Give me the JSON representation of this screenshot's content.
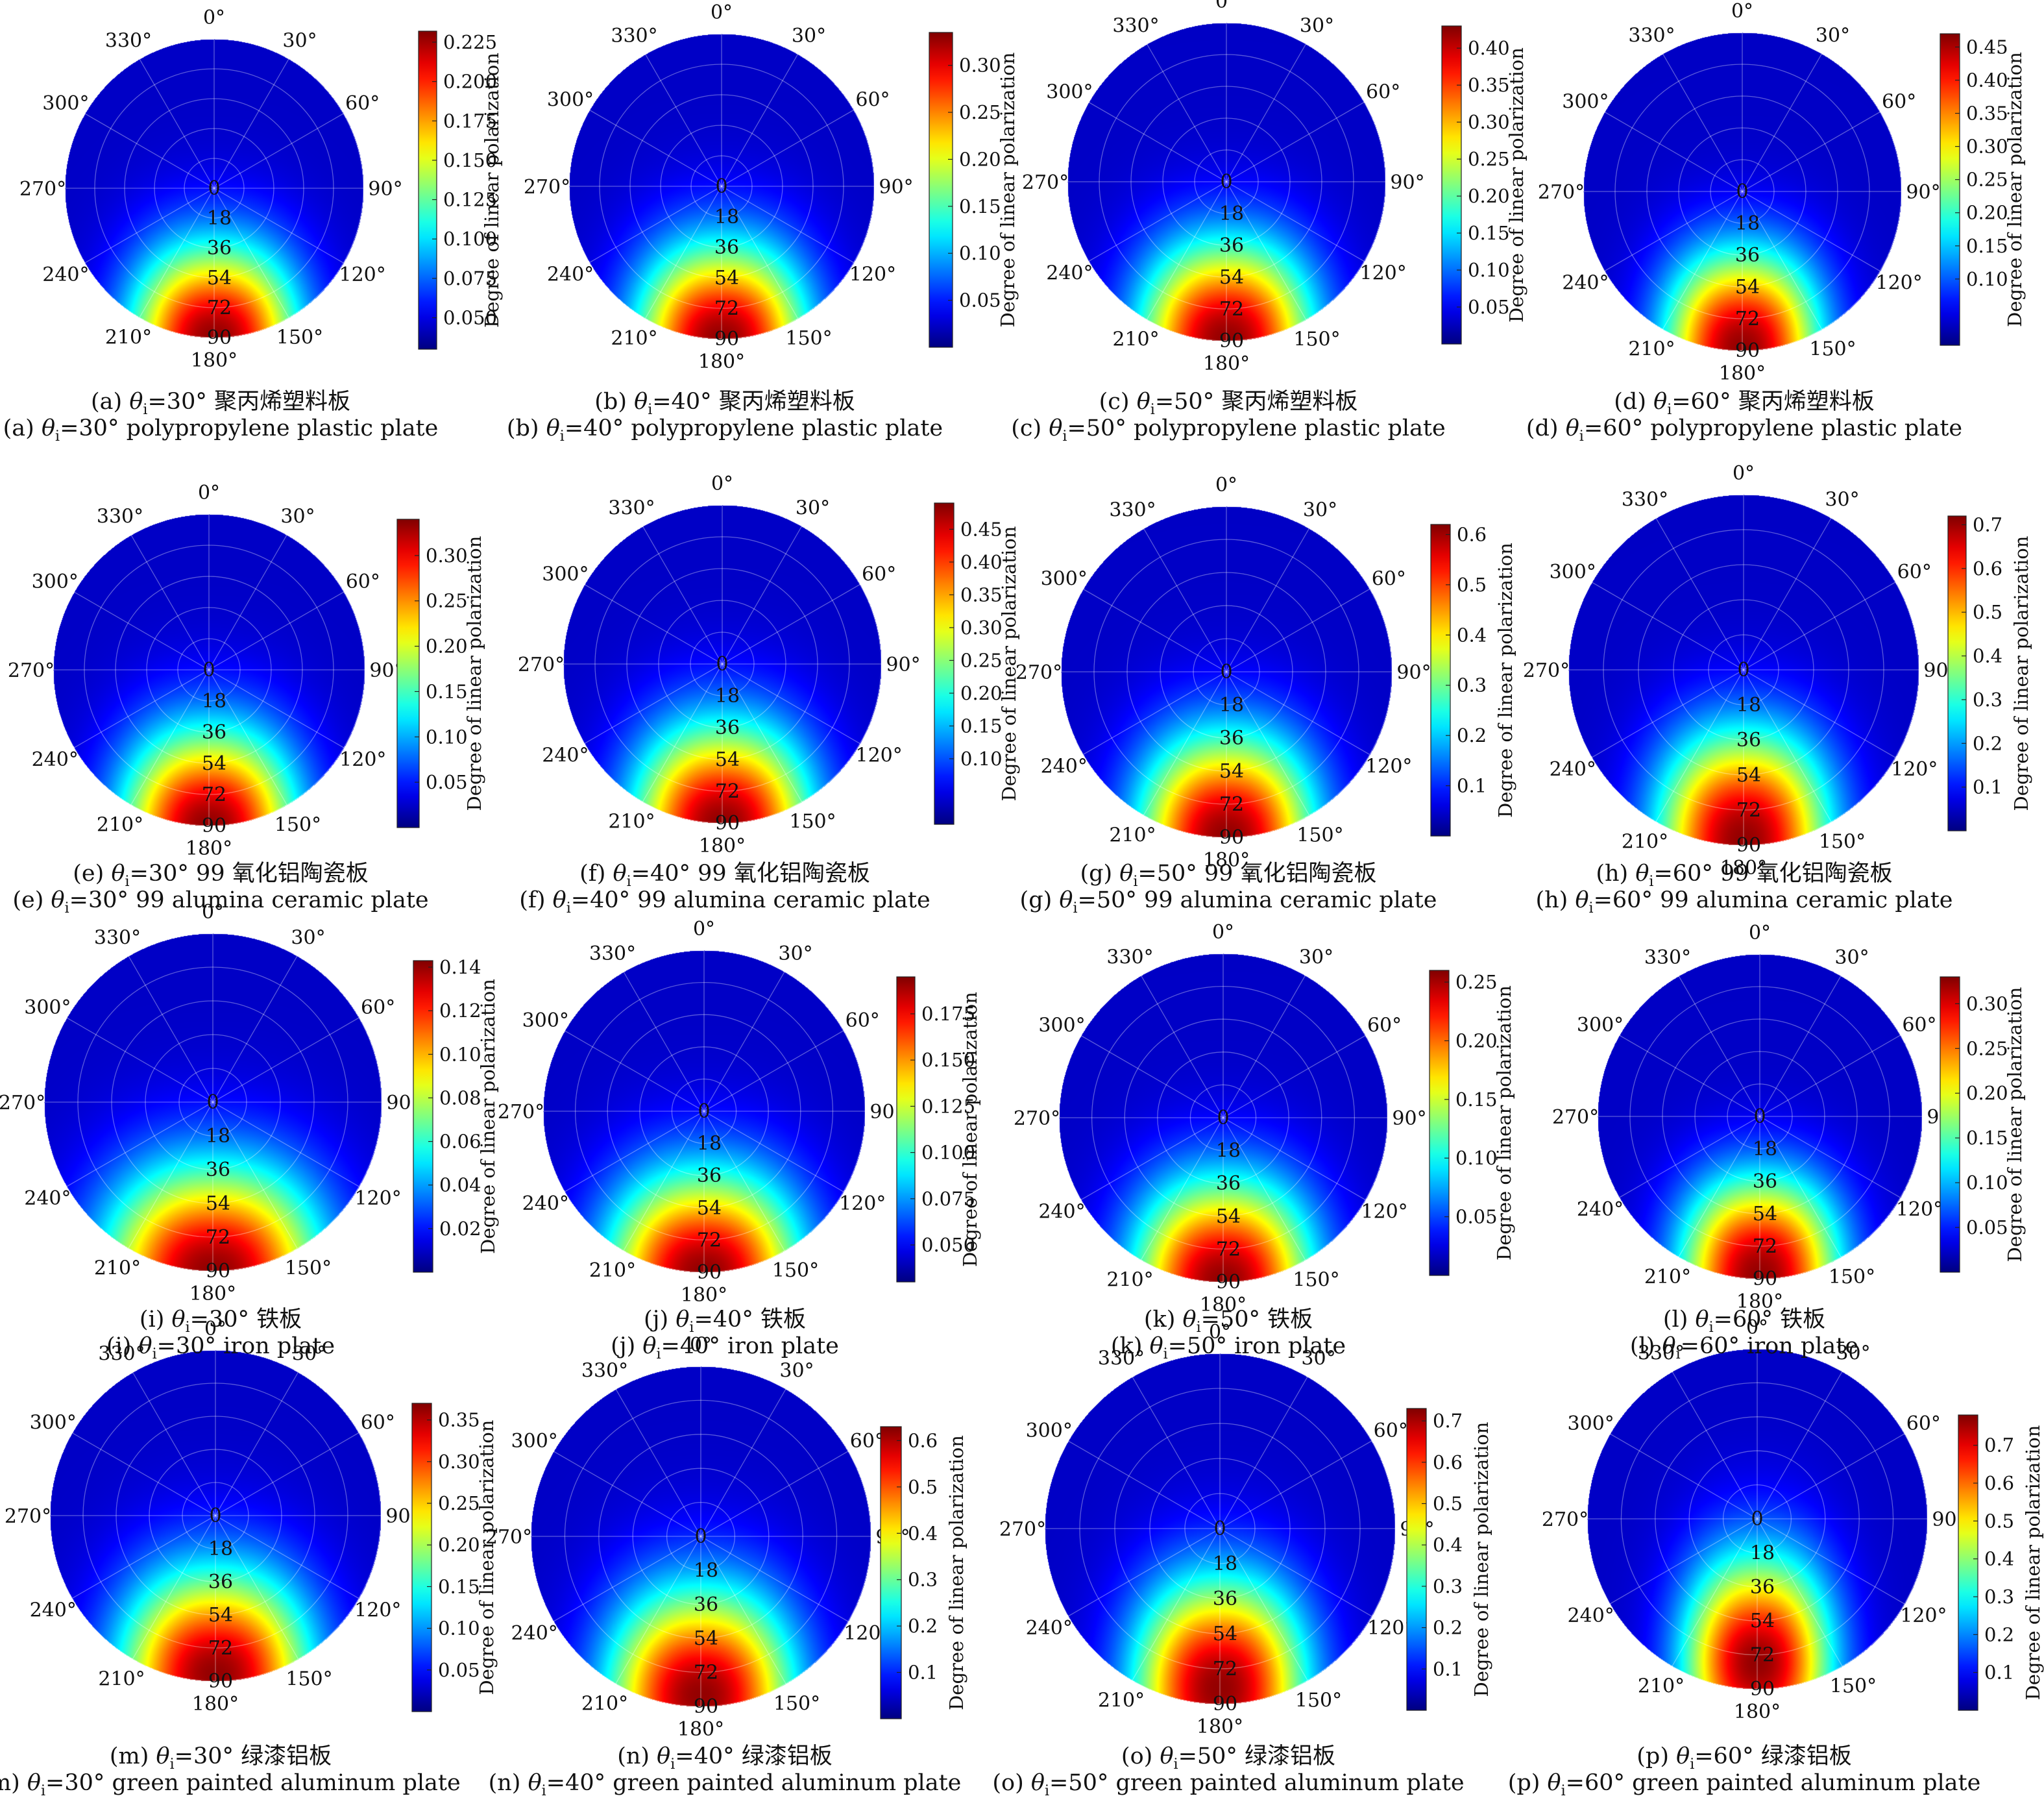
{
  "colorbar_label": "Degree of linear polarization",
  "azimuth_ticks": [
    "0°",
    "30°",
    "60°",
    "90°",
    "120°",
    "150°",
    "180°",
    "210°",
    "240°",
    "270°",
    "300°",
    "330°"
  ],
  "radial_ticks": [
    "0",
    "18",
    "36",
    "54",
    "72",
    "90"
  ],
  "chart_data": [
    {
      "panel": "a",
      "type": "heatmap",
      "projection": "polar",
      "theta_i": "30°",
      "material_cn": "聚丙烯塑料板",
      "material_en": "polypropylene plastic plate",
      "colorbar_ticks": [
        "0.050",
        "0.075",
        "0.100",
        "0.125",
        "0.150",
        "0.175",
        "0.200",
        "0.225"
      ],
      "zlim": [
        0.03,
        0.232
      ]
    },
    {
      "panel": "b",
      "type": "heatmap",
      "projection": "polar",
      "theta_i": "40°",
      "material_cn": "聚丙烯塑料板",
      "material_en": "polypropylene plastic plate",
      "colorbar_ticks": [
        "0.05",
        "0.10",
        "0.15",
        "0.20",
        "0.25",
        "0.30"
      ],
      "zlim": [
        0.0,
        0.335
      ]
    },
    {
      "panel": "c",
      "type": "heatmap",
      "projection": "polar",
      "theta_i": "50°",
      "material_cn": "聚丙烯塑料板",
      "material_en": "polypropylene plastic plate",
      "colorbar_ticks": [
        "0.05",
        "0.10",
        "0.15",
        "0.20",
        "0.25",
        "0.30",
        "0.35",
        "0.40"
      ],
      "zlim": [
        0.0,
        0.43
      ]
    },
    {
      "panel": "d",
      "type": "heatmap",
      "projection": "polar",
      "theta_i": "60°",
      "material_cn": "聚丙烯塑料板",
      "material_en": "polypropylene plastic plate",
      "colorbar_ticks": [
        "0.10",
        "0.15",
        "0.20",
        "0.25",
        "0.30",
        "0.35",
        "0.40",
        "0.45"
      ],
      "zlim": [
        0.0,
        0.47
      ]
    },
    {
      "panel": "e",
      "type": "heatmap",
      "projection": "polar",
      "theta_i": "30°",
      "material_cn": "99 氧化铝陶瓷板",
      "material_en": "99 alumina ceramic plate",
      "colorbar_ticks": [
        "0.05",
        "0.10",
        "0.15",
        "0.20",
        "0.25",
        "0.30"
      ],
      "zlim": [
        0.0,
        0.34
      ]
    },
    {
      "panel": "f",
      "type": "heatmap",
      "projection": "polar",
      "theta_i": "40°",
      "material_cn": "99 氧化铝陶瓷板",
      "material_en": "99 alumina ceramic plate",
      "colorbar_ticks": [
        "0.10",
        "0.15",
        "0.20",
        "0.25",
        "0.30",
        "0.35",
        "0.40",
        "0.45"
      ],
      "zlim": [
        0.0,
        0.49
      ]
    },
    {
      "panel": "g",
      "type": "heatmap",
      "projection": "polar",
      "theta_i": "50°",
      "material_cn": "99 氧化铝陶瓷板",
      "material_en": "99 alumina ceramic plate",
      "colorbar_ticks": [
        "0.1",
        "0.2",
        "0.3",
        "0.4",
        "0.5",
        "0.6"
      ],
      "zlim": [
        0.0,
        0.62
      ]
    },
    {
      "panel": "h",
      "type": "heatmap",
      "projection": "polar",
      "theta_i": "60°",
      "material_cn": "99 氧化铝陶瓷板",
      "material_en": "99 alumina ceramic plate",
      "colorbar_ticks": [
        "0.1",
        "0.2",
        "0.3",
        "0.4",
        "0.5",
        "0.6",
        "0.7"
      ],
      "zlim": [
        0.0,
        0.72
      ]
    },
    {
      "panel": "i",
      "type": "heatmap",
      "projection": "polar",
      "theta_i": "30°",
      "material_cn": "铁板",
      "material_en": "iron plate",
      "colorbar_ticks": [
        "0.02",
        "0.04",
        "0.06",
        "0.08",
        "0.10",
        "0.12",
        "0.14"
      ],
      "zlim": [
        0.0,
        0.143
      ]
    },
    {
      "panel": "j",
      "type": "heatmap",
      "projection": "polar",
      "theta_i": "40°",
      "material_cn": "铁板",
      "material_en": "iron plate",
      "colorbar_ticks": [
        "0.050",
        "0.075",
        "0.100",
        "0.125",
        "0.150",
        "0.175"
      ],
      "zlim": [
        0.03,
        0.195
      ]
    },
    {
      "panel": "k",
      "type": "heatmap",
      "projection": "polar",
      "theta_i": "50°",
      "material_cn": "铁板",
      "material_en": "iron plate",
      "colorbar_ticks": [
        "0.05",
        "0.10",
        "0.15",
        "0.20",
        "0.25"
      ],
      "zlim": [
        0.0,
        0.26
      ]
    },
    {
      "panel": "l",
      "type": "heatmap",
      "projection": "polar",
      "theta_i": "60°",
      "material_cn": "铁板",
      "material_en": "iron plate",
      "colorbar_ticks": [
        "0.05",
        "0.10",
        "0.15",
        "0.20",
        "0.25",
        "0.30"
      ],
      "zlim": [
        0.0,
        0.33
      ]
    },
    {
      "panel": "m",
      "type": "heatmap",
      "projection": "polar",
      "theta_i": "30°",
      "material_cn": "绿漆铝板",
      "material_en": "green painted aluminum plate",
      "colorbar_ticks": [
        "0.05",
        "0.10",
        "0.15",
        "0.20",
        "0.25",
        "0.30",
        "0.35"
      ],
      "zlim": [
        0.0,
        0.37
      ]
    },
    {
      "panel": "n",
      "type": "heatmap",
      "projection": "polar",
      "theta_i": "40°",
      "material_cn": "绿漆铝板",
      "material_en": "green painted aluminum plate",
      "colorbar_ticks": [
        "0.1",
        "0.2",
        "0.3",
        "0.4",
        "0.5",
        "0.6"
      ],
      "zlim": [
        0.0,
        0.63
      ]
    },
    {
      "panel": "o",
      "type": "heatmap",
      "projection": "polar",
      "theta_i": "50°",
      "material_cn": "绿漆铝板",
      "material_en": "green painted aluminum plate",
      "colorbar_ticks": [
        "0.1",
        "0.2",
        "0.3",
        "0.4",
        "0.5",
        "0.6",
        "0.7"
      ],
      "zlim": [
        0.0,
        0.73
      ]
    },
    {
      "panel": "p",
      "type": "heatmap",
      "projection": "polar",
      "theta_i": "60°",
      "material_cn": "绿漆铝板",
      "material_en": "green painted aluminum plate",
      "colorbar_ticks": [
        "0.1",
        "0.2",
        "0.3",
        "0.4",
        "0.5",
        "0.6",
        "0.7"
      ],
      "zlim": [
        0.0,
        0.78
      ]
    }
  ]
}
